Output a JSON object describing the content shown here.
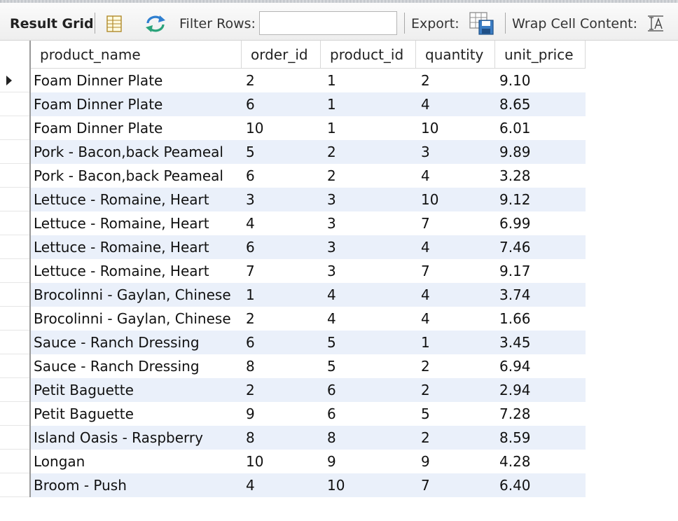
{
  "toolbar": {
    "title": "Result Grid",
    "filter_label": "Filter Rows:",
    "filter_value": "",
    "export_label": "Export:",
    "wrap_label": "Wrap Cell Content:",
    "icons": [
      "form-editor-icon",
      "refresh-icon",
      "export-icon",
      "wrap-text-icon"
    ]
  },
  "grid": {
    "columns": [
      "product_name",
      "order_id",
      "product_id",
      "quantity",
      "unit_price"
    ],
    "current_row": 0,
    "rows": [
      [
        "Foam Dinner Plate",
        "2",
        "1",
        "2",
        "9.10"
      ],
      [
        "Foam Dinner Plate",
        "6",
        "1",
        "4",
        "8.65"
      ],
      [
        "Foam Dinner Plate",
        "10",
        "1",
        "10",
        "6.01"
      ],
      [
        "Pork - Bacon,back Peameal",
        "5",
        "2",
        "3",
        "9.89"
      ],
      [
        "Pork - Bacon,back Peameal",
        "6",
        "2",
        "4",
        "3.28"
      ],
      [
        "Lettuce - Romaine, Heart",
        "3",
        "3",
        "10",
        "9.12"
      ],
      [
        "Lettuce - Romaine, Heart",
        "4",
        "3",
        "7",
        "6.99"
      ],
      [
        "Lettuce - Romaine, Heart",
        "6",
        "3",
        "4",
        "7.46"
      ],
      [
        "Lettuce - Romaine, Heart",
        "7",
        "3",
        "7",
        "9.17"
      ],
      [
        "Brocolinni - Gaylan, Chinese",
        "1",
        "4",
        "4",
        "3.74"
      ],
      [
        "Brocolinni - Gaylan, Chinese",
        "2",
        "4",
        "4",
        "1.66"
      ],
      [
        "Sauce - Ranch Dressing",
        "6",
        "5",
        "1",
        "3.45"
      ],
      [
        "Sauce - Ranch Dressing",
        "8",
        "5",
        "2",
        "6.94"
      ],
      [
        "Petit Baguette",
        "2",
        "6",
        "2",
        "2.94"
      ],
      [
        "Petit Baguette",
        "9",
        "6",
        "5",
        "7.28"
      ],
      [
        "Island Oasis - Raspberry",
        "8",
        "8",
        "2",
        "8.59"
      ],
      [
        "Longan",
        "10",
        "9",
        "9",
        "4.28"
      ],
      [
        "Broom - Push",
        "4",
        "10",
        "7",
        "6.40"
      ]
    ]
  },
  "colors": {
    "alt_row": "#eaf0fa",
    "header_bg": "#ffffff",
    "toolbar_bg": "#f2f2f2"
  }
}
